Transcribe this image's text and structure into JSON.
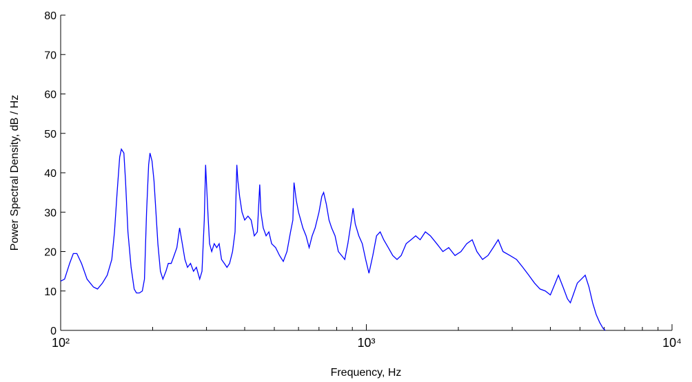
{
  "chart_data": {
    "type": "line",
    "xlabel": "Frequency, Hz",
    "ylabel": "Power Spectral Density, dB / Hz",
    "xscale": "log",
    "xlim": [
      100,
      10000
    ],
    "xticks": [
      {
        "value": 100,
        "label": "10²"
      },
      {
        "value": 1000,
        "label": "10³"
      },
      {
        "value": 10000,
        "label": "10⁴"
      }
    ],
    "xminorticks": [
      200,
      300,
      400,
      500,
      600,
      700,
      800,
      900,
      2000,
      3000,
      4000,
      5000,
      6000,
      7000,
      8000,
      9000
    ],
    "ylim": [
      0,
      80
    ],
    "yticks": [
      0,
      10,
      20,
      30,
      40,
      50,
      60,
      70,
      80
    ],
    "grid": false,
    "color": "#0000ff",
    "x": [
      100,
      103,
      107,
      110,
      113,
      117,
      122,
      128,
      132,
      137,
      142,
      147,
      150,
      153,
      156,
      158,
      161,
      163,
      166,
      170,
      174,
      177,
      181,
      185,
      188,
      191,
      194,
      196,
      199,
      202,
      205,
      208,
      212,
      216,
      221,
      225,
      230,
      235,
      240,
      245,
      250,
      255,
      260,
      266,
      272,
      278,
      285,
      290,
      295,
      298,
      301,
      304,
      307,
      312,
      318,
      324,
      330,
      336,
      343,
      350,
      357,
      365,
      372,
      377,
      380,
      385,
      392,
      400,
      410,
      420,
      430,
      440,
      448,
      452,
      460,
      470,
      480,
      490,
      505,
      520,
      535,
      550,
      565,
      575,
      580,
      590,
      600,
      610,
      620,
      635,
      650,
      665,
      680,
      700,
      715,
      725,
      740,
      755,
      770,
      790,
      810,
      830,
      850,
      870,
      890,
      905,
      920,
      945,
      970,
      995,
      1020,
      1050,
      1080,
      1110,
      1140,
      1180,
      1220,
      1260,
      1300,
      1350,
      1400,
      1450,
      1500,
      1560,
      1620,
      1700,
      1780,
      1860,
      1950,
      2040,
      2130,
      2220,
      2300,
      2400,
      2500,
      2600,
      2700,
      2800,
      2950,
      3100,
      3250,
      3400,
      3550,
      3700,
      3850,
      4000,
      4150,
      4250,
      4400,
      4550,
      4650,
      4750,
      4900,
      5050,
      5200,
      5350,
      5500,
      5650,
      5800,
      5950,
      6050
    ],
    "values": [
      12.5,
      13,
      17,
      19.5,
      19.5,
      17,
      13,
      11,
      10.5,
      12,
      14,
      18,
      25,
      35,
      44,
      46,
      45,
      38,
      25,
      16,
      10.5,
      9.5,
      9.5,
      10,
      13,
      30,
      42,
      45,
      43,
      38,
      30,
      22,
      15,
      13,
      15,
      17,
      17,
      19,
      21,
      26,
      22,
      18,
      16,
      17,
      15,
      16,
      13,
      15,
      28,
      42,
      35,
      28,
      22,
      20,
      22,
      21,
      22,
      18,
      17,
      16,
      17,
      20,
      25,
      42,
      38,
      34,
      30,
      28,
      29,
      28,
      24,
      25,
      37,
      30,
      26,
      24,
      25,
      22,
      21,
      19,
      17.5,
      20,
      25,
      28,
      37.5,
      33,
      30,
      28,
      26,
      24,
      21,
      24,
      26,
      30,
      34,
      35,
      32,
      28,
      26,
      24,
      20,
      19,
      18,
      22,
      27,
      31,
      27,
      24,
      22,
      18,
      14.5,
      19,
      24,
      25,
      23,
      21,
      19,
      18,
      19,
      22,
      23,
      24,
      23,
      25,
      24,
      22,
      20,
      21,
      19,
      20,
      22,
      23,
      20,
      18,
      19,
      21,
      23,
      20,
      19,
      18,
      16,
      14,
      12,
      10.5,
      10,
      9,
      12,
      14,
      11,
      8,
      7,
      9,
      12,
      13,
      14,
      11,
      7,
      4,
      2,
      0.5,
      0
    ]
  }
}
